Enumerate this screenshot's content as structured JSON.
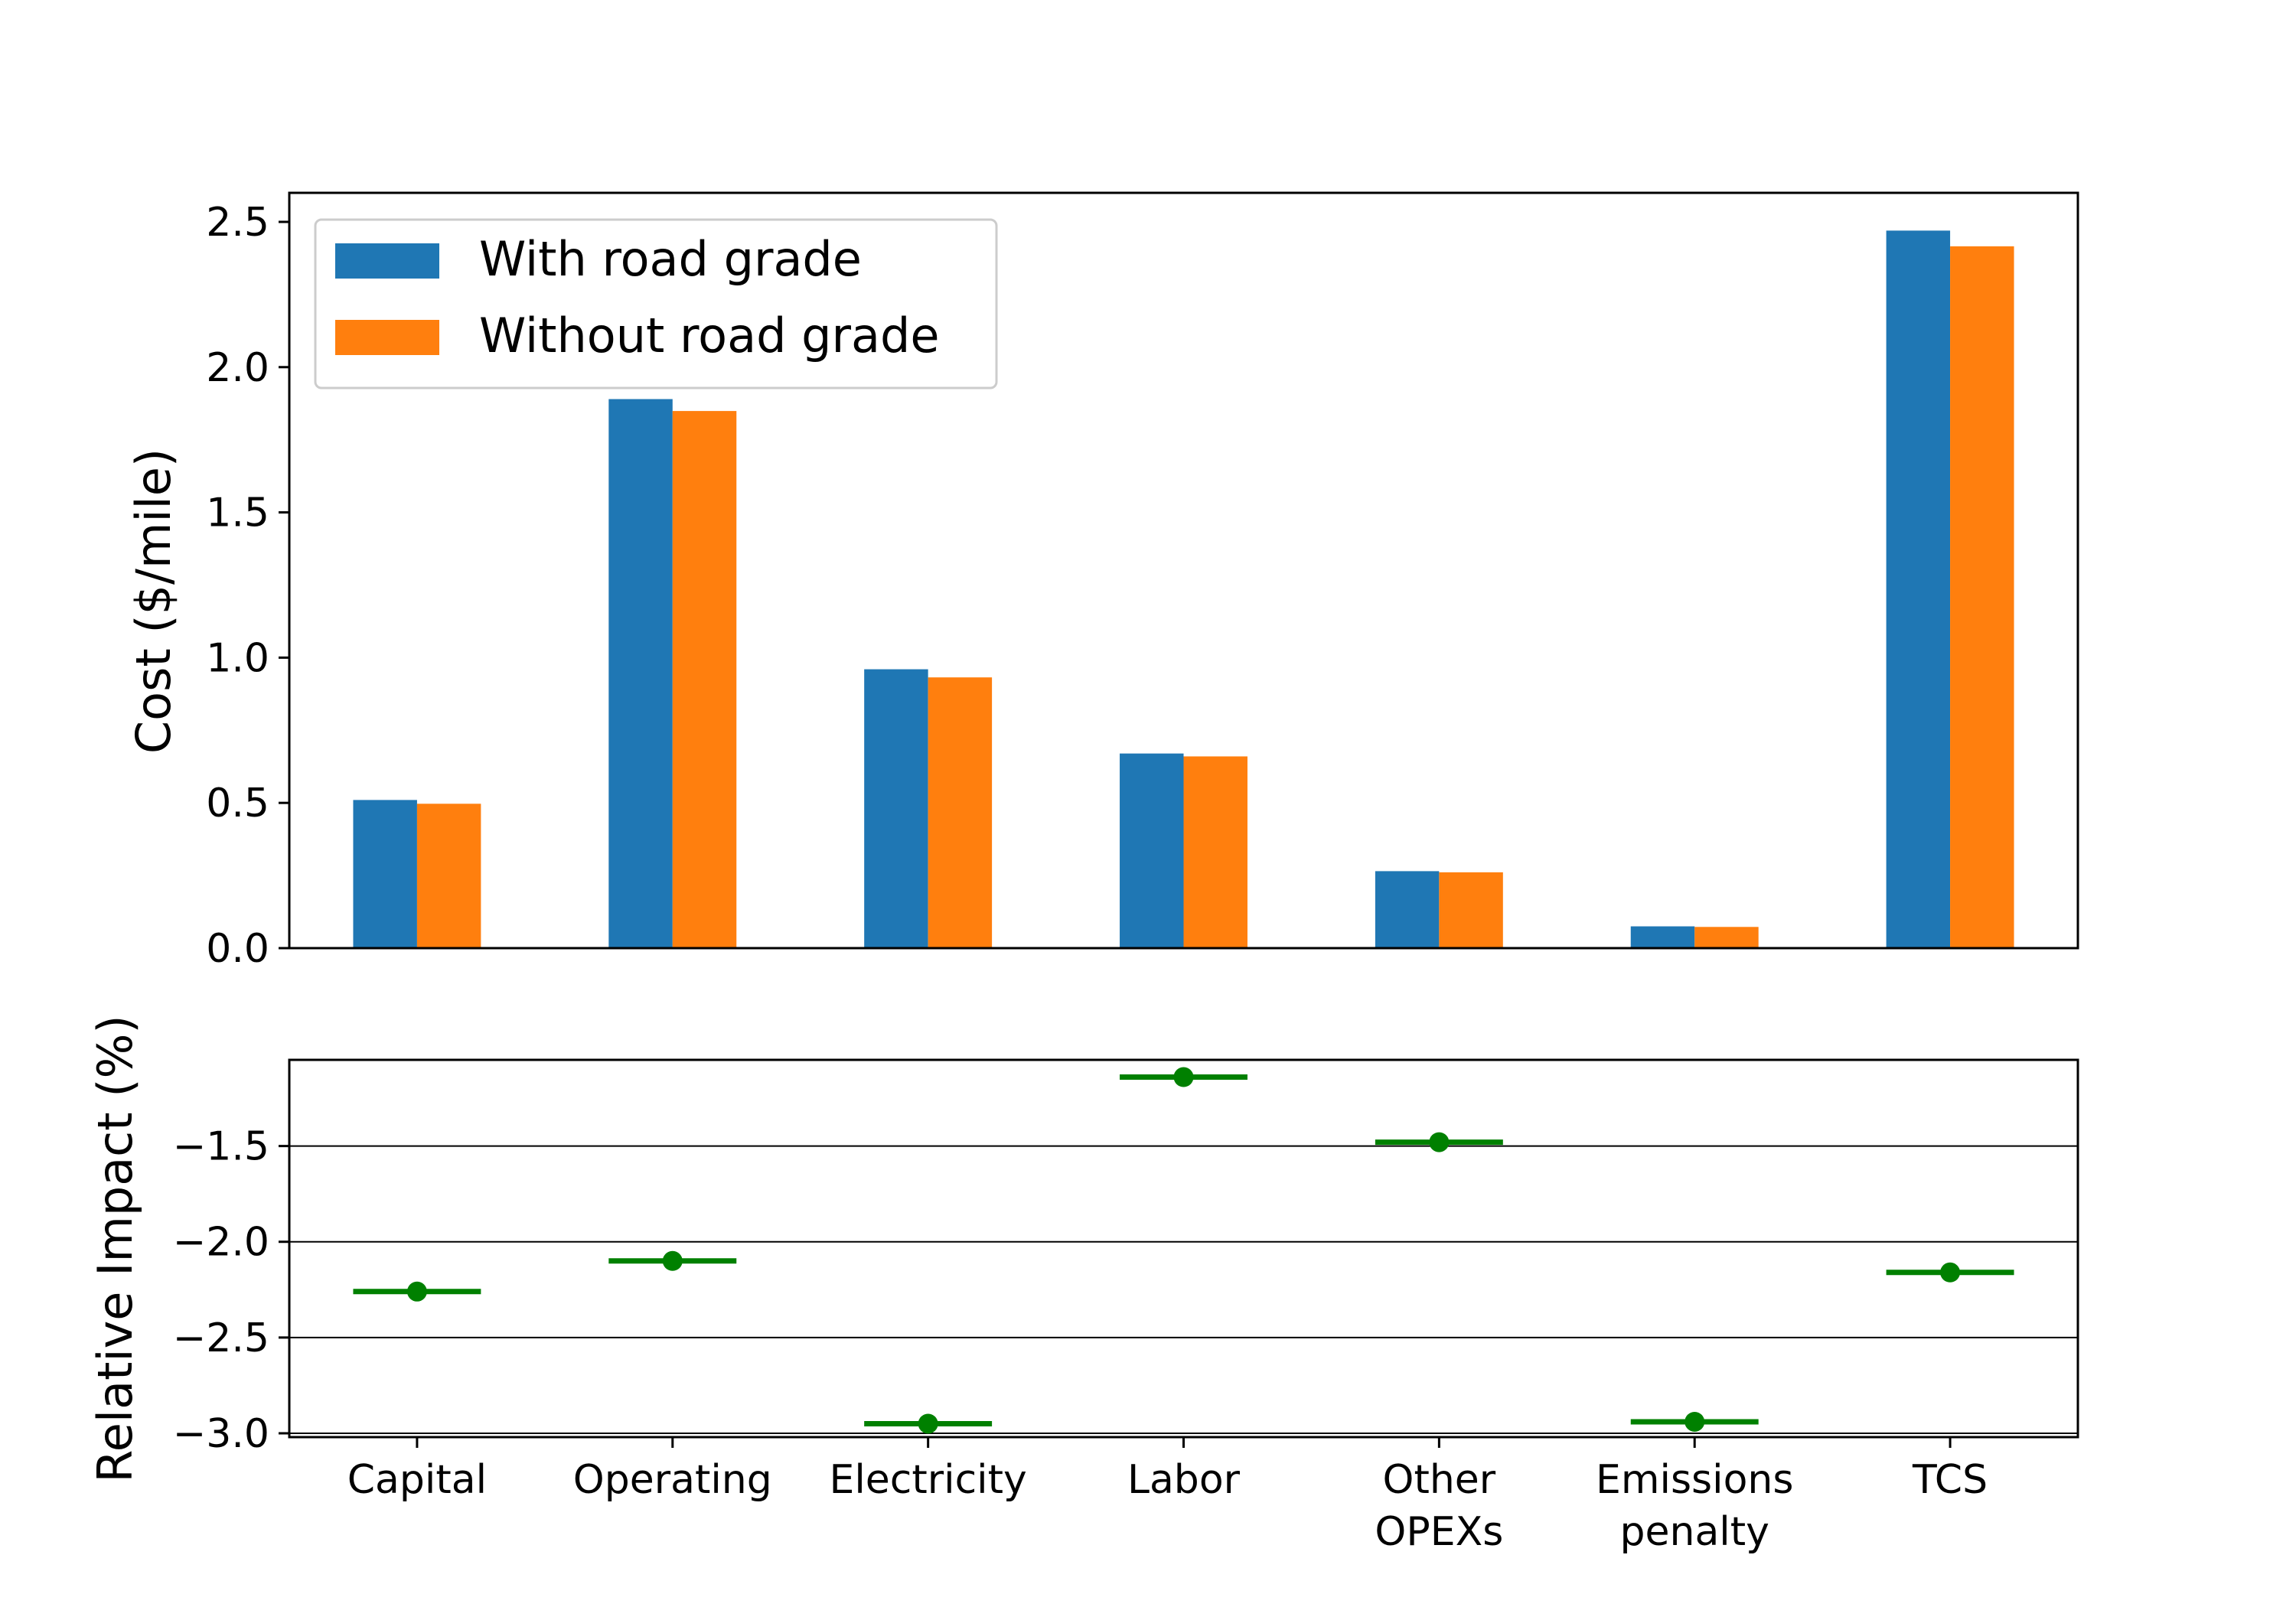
{
  "chart_data": [
    {
      "type": "bar",
      "categories": [
        "Capital",
        "Operating",
        "Electricity",
        "Labor",
        "Other OPEXs",
        "Emissions penalty",
        "TCS"
      ],
      "category_lines": [
        [
          "Capital"
        ],
        [
          "Operating"
        ],
        [
          "Electricity"
        ],
        [
          "Labor"
        ],
        [
          "Other",
          "OPEXs"
        ],
        [
          "Emissions",
          "penalty"
        ],
        [
          "TCS"
        ]
      ],
      "series": [
        {
          "name": "With road grade",
          "color": "#1f77b4",
          "values": [
            0.51,
            1.89,
            0.96,
            0.67,
            0.265,
            0.075,
            2.47
          ]
        },
        {
          "name": "Without road grade",
          "color": "#ff7f0e",
          "values": [
            0.497,
            1.849,
            0.932,
            0.66,
            0.261,
            0.073,
            2.416
          ]
        }
      ],
      "xlabel": "",
      "ylabel": "Cost ($/mile)",
      "ylim": [
        0,
        2.6
      ],
      "yticks": [
        0.0,
        0.5,
        1.0,
        1.5,
        2.0,
        2.5
      ],
      "ytick_labels": [
        "0.0",
        "0.5",
        "1.0",
        "1.5",
        "2.0",
        "2.5"
      ],
      "grid": false,
      "legend": "top-left"
    },
    {
      "type": "scatter",
      "categories": [
        "Capital",
        "Operating",
        "Electricity",
        "Labor",
        "Other OPEXs",
        "Emissions penalty",
        "TCS"
      ],
      "values": [
        -2.26,
        -2.1,
        -2.95,
        -1.14,
        -1.48,
        -2.94,
        -2.16
      ],
      "color": "#008000",
      "marker": "circle with horizontal bar",
      "xlabel": "",
      "ylabel": "Relative Impact (%)",
      "ylim": [
        -3.02,
        -1.05
      ],
      "yticks": [
        -3.0,
        -2.5,
        -2.0,
        -1.5
      ],
      "ytick_labels": [
        "−3.0",
        "−2.5",
        "−2.0",
        "−1.5"
      ],
      "grid": "horizontal lines at ticks",
      "legend": "none"
    }
  ]
}
